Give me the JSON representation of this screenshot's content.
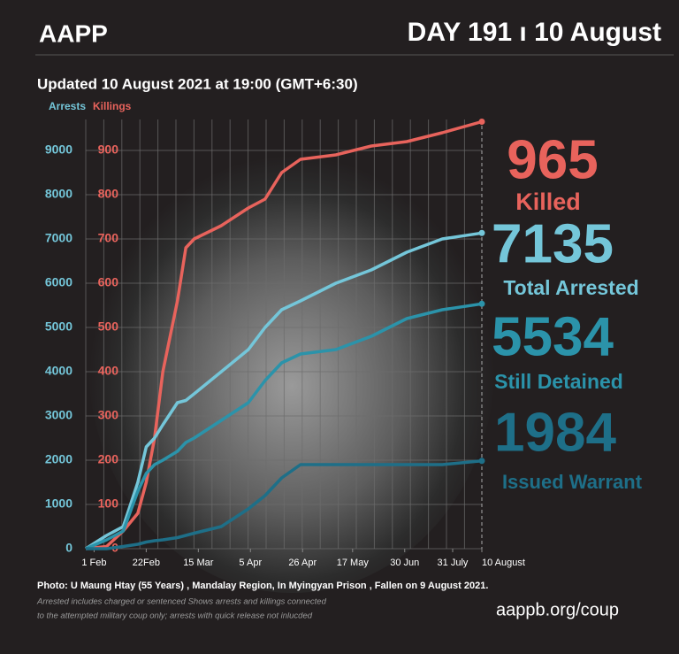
{
  "header": {
    "brand": "AAPP",
    "day": "DAY 191 ı 10 August",
    "updated": "Updated 10 August 2021 at 19:00 (GMT+6:30)"
  },
  "chart_data": {
    "type": "line",
    "ylabel": "Arrests",
    "y2label": "Killings",
    "x": [
      0,
      10,
      18,
      25,
      29,
      33,
      37,
      44,
      48,
      52,
      65,
      78,
      86,
      94,
      103,
      120,
      137,
      154,
      171,
      190
    ],
    "xlim": [
      0,
      190
    ],
    "xticks": [
      {
        "value": 4,
        "label": "1 Feb"
      },
      {
        "value": 29,
        "label": "22Feb"
      },
      {
        "value": 54,
        "label": "15 Mar"
      },
      {
        "value": 79,
        "label": "5 Apr"
      },
      {
        "value": 104,
        "label": "26 Apr"
      },
      {
        "value": 128,
        "label": "17 May"
      },
      {
        "value": 153,
        "label": "30 Jun"
      },
      {
        "value": 176,
        "label": "31 July"
      },
      {
        "value": 190,
        "label": "10 August"
      }
    ],
    "ylim": [
      0,
      9700
    ],
    "yticks": [
      0,
      1000,
      2000,
      3000,
      4000,
      5000,
      6000,
      7000,
      8000,
      9000
    ],
    "y2lim": [
      0,
      970
    ],
    "y2ticks": [
      0,
      100,
      200,
      300,
      400,
      500,
      600,
      700,
      800,
      900
    ],
    "grid": true,
    "series": [
      {
        "name": "Killed",
        "color": "#e8635c",
        "axis": "y2",
        "values": [
          0,
          5,
          40,
          80,
          150,
          250,
          400,
          560,
          680,
          700,
          730,
          770,
          790,
          850,
          880,
          890,
          910,
          920,
          940,
          965
        ]
      },
      {
        "name": "Total Arrested",
        "color": "#74c6d9",
        "values": [
          0,
          300,
          500,
          1500,
          2300,
          2500,
          2800,
          3300,
          3350,
          3500,
          4000,
          4500,
          5000,
          5400,
          5600,
          6000,
          6300,
          6700,
          7000,
          7135
        ]
      },
      {
        "name": "Still Detained",
        "color": "#2b93aa",
        "values": [
          0,
          200,
          400,
          1300,
          1700,
          1900,
          2000,
          2200,
          2400,
          2500,
          2900,
          3300,
          3800,
          4200,
          4400,
          4500,
          4800,
          5200,
          5400,
          5534
        ]
      },
      {
        "name": "Issued Warrant",
        "color": "#1e6f88",
        "values": [
          0,
          0,
          50,
          100,
          150,
          180,
          200,
          250,
          300,
          350,
          500,
          900,
          1200,
          1600,
          1900,
          1900,
          1900,
          1900,
          1900,
          1984
        ]
      }
    ]
  },
  "footer": {
    "photo": "Photo:  U Maung Htay (55 Years) , Mandalay Region, In Myingyan Prison , Fallen on 9 August 2021.",
    "note1": "Arrested includes charged or sentenced Shows arrests and killings connected",
    "note2": "to the attempted military coup only; arrests with quick release not inlucded",
    "url": "aappb.org/coup"
  }
}
